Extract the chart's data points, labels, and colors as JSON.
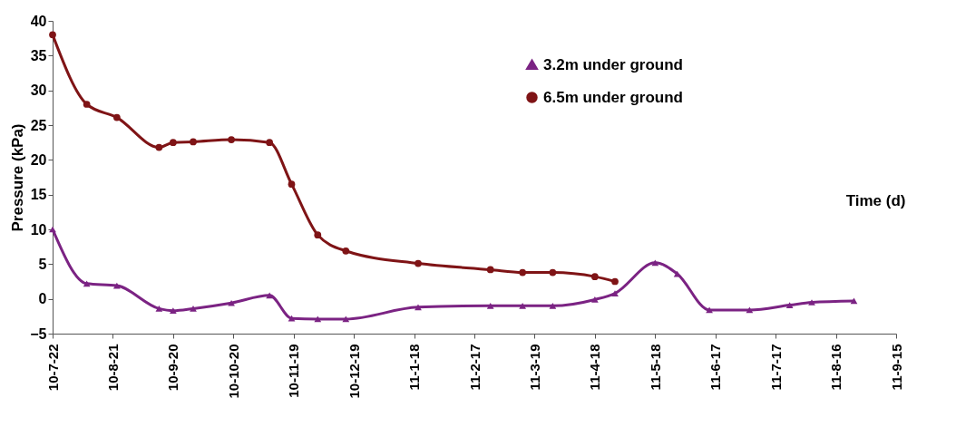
{
  "chart_data": {
    "type": "line",
    "xlabel": "Time (d)",
    "ylabel": "Pressure (kPa)",
    "xlim": [
      "2010-07-22",
      "2011-09-15"
    ],
    "xticks": [
      {
        "value": "2010-07-22",
        "label": "10-7-22"
      },
      {
        "value": "2010-08-21",
        "label": "10-8-21"
      },
      {
        "value": "2010-09-20",
        "label": "10-9-20"
      },
      {
        "value": "2010-10-20",
        "label": "10-10-20"
      },
      {
        "value": "2010-11-19",
        "label": "10-11-19"
      },
      {
        "value": "2010-12-19",
        "label": "10-12-19"
      },
      {
        "value": "2011-01-18",
        "label": "11-1-18"
      },
      {
        "value": "2011-02-17",
        "label": "11-2-17"
      },
      {
        "value": "2011-03-19",
        "label": "11-3-19"
      },
      {
        "value": "2011-04-18",
        "label": "11-4-18"
      },
      {
        "value": "2011-05-18",
        "label": "11-5-18"
      },
      {
        "value": "2011-06-17",
        "label": "11-6-17"
      },
      {
        "value": "2011-07-17",
        "label": "11-7-17"
      },
      {
        "value": "2011-08-16",
        "label": "11-8-16"
      },
      {
        "value": "2011-09-15",
        "label": "11-9-15"
      }
    ],
    "ylim": [
      -5,
      40
    ],
    "yticks": [
      -5,
      0,
      5,
      10,
      15,
      20,
      25,
      30,
      35,
      40
    ],
    "grid": false,
    "legend": "top right",
    "line_style": "solid",
    "series": [
      {
        "name": "3.2m under ground",
        "color": "#7b2383",
        "marker": "triangle",
        "x": [
          "2010-07-22",
          "2010-08-08",
          "2010-08-23",
          "2010-09-13",
          "2010-09-20",
          "2010-09-30",
          "2010-10-19",
          "2010-11-07",
          "2010-11-18",
          "2010-12-01",
          "2010-12-15",
          "2011-01-20",
          "2011-02-25",
          "2011-03-13",
          "2011-03-28",
          "2011-04-18",
          "2011-04-28",
          "2011-05-18",
          "2011-05-29",
          "2011-06-14",
          "2011-07-04",
          "2011-07-24",
          "2011-08-04",
          "2011-08-25"
        ],
        "values": [
          10.0,
          2.2,
          1.9,
          -1.4,
          -1.7,
          -1.4,
          -0.6,
          0.5,
          -2.8,
          -2.9,
          -2.9,
          -1.2,
          -1.0,
          -1.0,
          -1.0,
          -0.1,
          0.8,
          5.2,
          3.6,
          -1.6,
          -1.6,
          -0.9,
          -0.5,
          -0.3
        ]
      },
      {
        "name": "6.5m under ground",
        "color": "#7f1416",
        "marker": "circle",
        "x": [
          "2010-07-22",
          "2010-08-08",
          "2010-08-23",
          "2010-09-13",
          "2010-09-20",
          "2010-09-30",
          "2010-10-19",
          "2010-11-07",
          "2010-11-18",
          "2010-12-01",
          "2010-12-15",
          "2011-01-20",
          "2011-02-25",
          "2011-03-13",
          "2011-03-28",
          "2011-04-18",
          "2011-04-28"
        ],
        "values": [
          38.0,
          28.0,
          26.1,
          21.8,
          22.5,
          22.6,
          22.9,
          22.5,
          16.5,
          9.2,
          6.9,
          5.1,
          4.2,
          3.8,
          3.8,
          3.2,
          2.5
        ]
      }
    ]
  }
}
